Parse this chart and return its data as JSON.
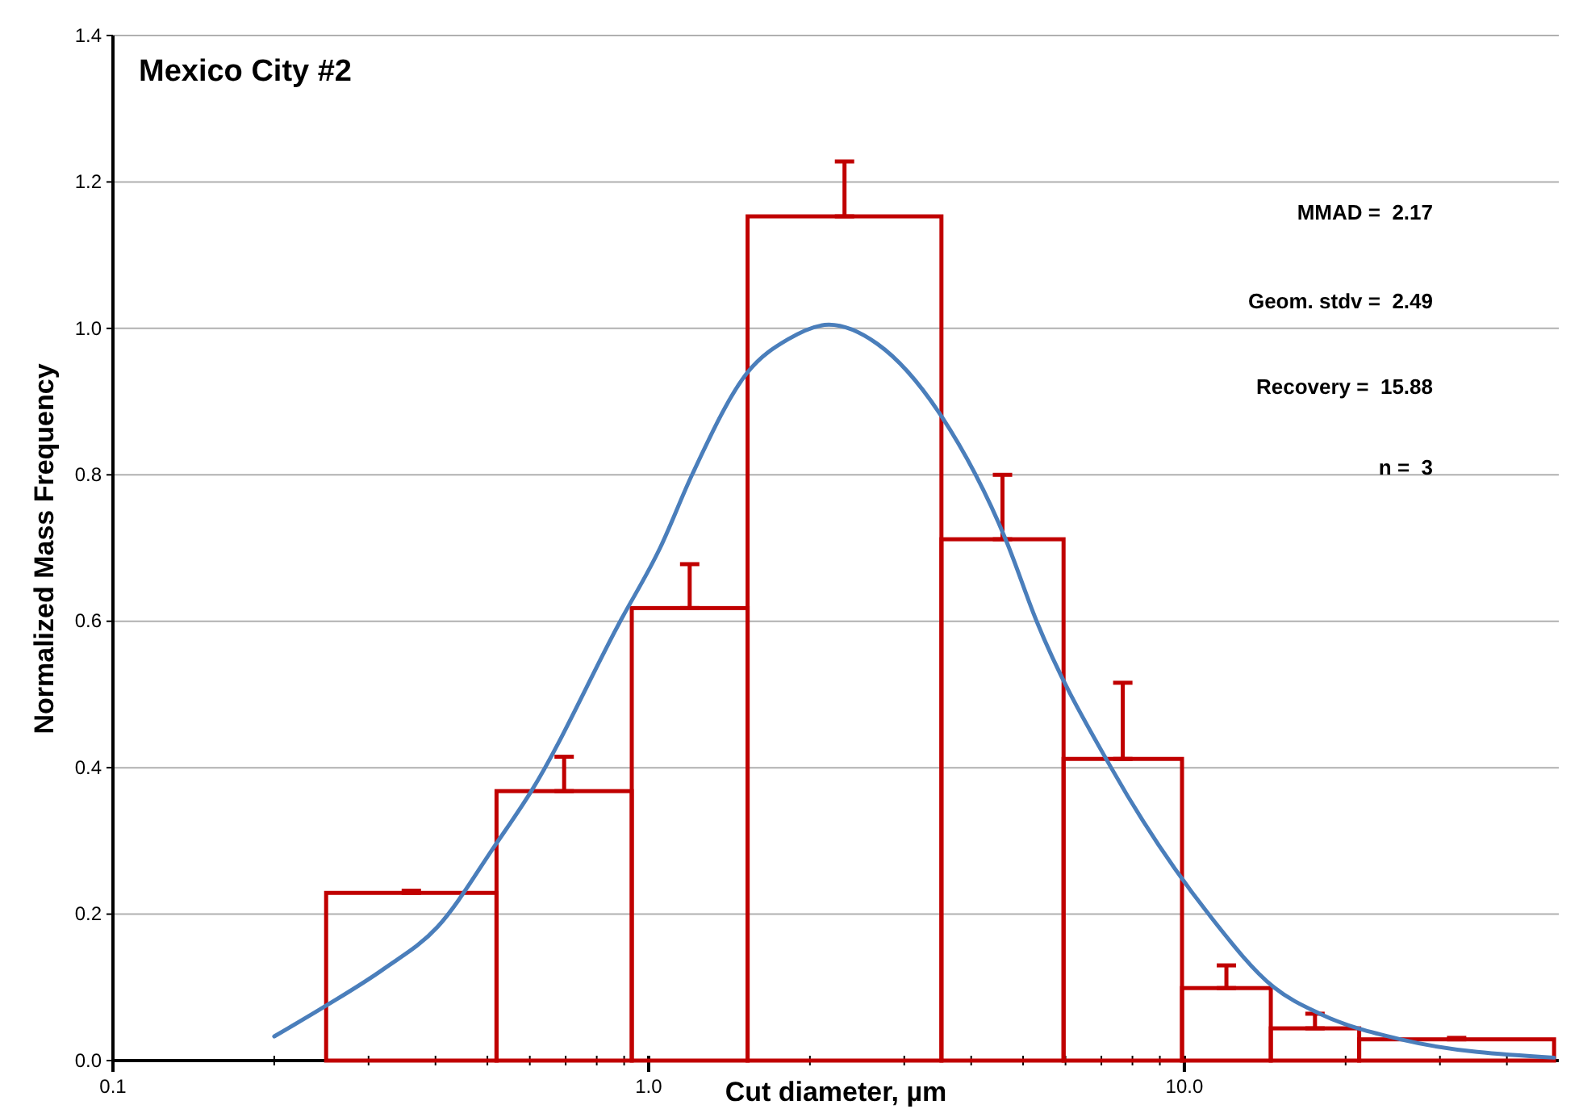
{
  "chart_data": {
    "type": "histogram",
    "title": "Mexico City #2",
    "xlabel": "Cut diameter, µm",
    "ylabel": "Normalized Mass Frequency",
    "log": "x",
    "grid": "y",
    "xlim": [
      0.1,
      50
    ],
    "ylim": [
      0,
      1.4
    ],
    "xticks": [
      {
        "value": 0.1,
        "label": "0.1"
      },
      {
        "value": 0.2,
        "label": null
      },
      {
        "value": 0.3,
        "label": null
      },
      {
        "value": 0.4,
        "label": null
      },
      {
        "value": 0.5,
        "label": null
      },
      {
        "value": 0.6,
        "label": null
      },
      {
        "value": 0.7,
        "label": null
      },
      {
        "value": 0.8,
        "label": null
      },
      {
        "value": 0.9,
        "label": null
      },
      {
        "value": 1,
        "label": "1.0"
      },
      {
        "value": 2,
        "label": null
      },
      {
        "value": 3,
        "label": null
      },
      {
        "value": 4,
        "label": null
      },
      {
        "value": 5,
        "label": null
      },
      {
        "value": 6,
        "label": null
      },
      {
        "value": 7,
        "label": null
      },
      {
        "value": 8,
        "label": null
      },
      {
        "value": 9,
        "label": null
      },
      {
        "value": 10,
        "label": "10.0"
      },
      {
        "value": 20,
        "label": null
      },
      {
        "value": 30,
        "label": null
      },
      {
        "value": 40,
        "label": null
      }
    ],
    "yticks": [
      {
        "value": 0,
        "label": "0.0"
      },
      {
        "value": 0.2,
        "label": "0.2"
      },
      {
        "value": 0.4,
        "label": "0.4"
      },
      {
        "value": 0.6,
        "label": "0.6"
      },
      {
        "value": 0.8,
        "label": "0.8"
      },
      {
        "value": 1,
        "label": "1.0"
      },
      {
        "value": 1.2,
        "label": "1.2"
      },
      {
        "value": 1.4,
        "label": "1.4"
      }
    ],
    "bins": [
      0.25,
      0.52,
      0.93,
      1.53,
      3.52,
      5.95,
      9.9,
      14.5,
      21.2,
      49
    ],
    "series": [
      {
        "color": "#c00000",
        "values": [
          0.229,
          0.368,
          0.618,
          1.153,
          0.712,
          0.412,
          0.099,
          0.044,
          0.029
        ],
        "errors": [
          [
            0.229,
            0.232
          ],
          [
            0.368,
            0.415
          ],
          [
            0.618,
            0.678
          ],
          [
            1.153,
            1.228
          ],
          [
            0.712,
            0.8
          ],
          [
            0.412,
            0.516
          ],
          [
            0.099,
            0.13
          ],
          [
            0.044,
            0.064
          ],
          [
            0.029,
            0.031
          ]
        ]
      },
      {
        "type": "line",
        "color": "#4a7ebb",
        "x": [
          0.2,
          0.25,
          0.32,
          0.404,
          0.518,
          0.604,
          0.885,
          1.05,
          1.205,
          1.53,
          1.82,
          2.17,
          2.67,
          3.52,
          4.65,
          5.3,
          7.3,
          11.1,
          14.7,
          17.9,
          25.3,
          49
        ],
        "values": [
          0.033,
          0.075,
          0.125,
          0.183,
          0.295,
          0.368,
          0.6,
          0.7,
          0.8,
          0.94,
          0.985,
          1.005,
          0.979,
          0.88,
          0.71,
          0.6,
          0.4,
          0.2,
          0.1,
          0.064,
          0.029,
          0.004
        ]
      }
    ],
    "annotations": [
      "MMAD =  2.17",
      "Geom. stdv =  2.49",
      "Recovery =  15.88",
      "n =  3"
    ]
  }
}
